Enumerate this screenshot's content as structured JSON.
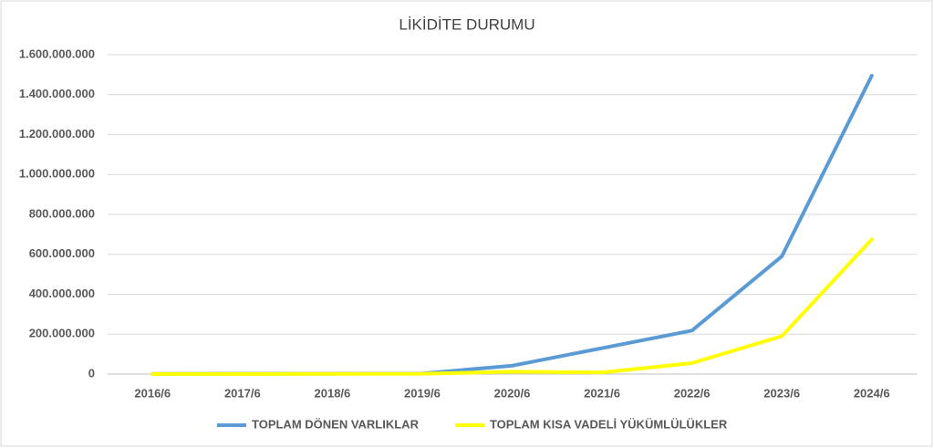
{
  "chart_data": {
    "type": "line",
    "title": "LİKİDİTE DURUMU",
    "categories": [
      "2016/6",
      "2017/6",
      "2018/6",
      "2019/6",
      "2020/6",
      "2021/6",
      "2022/6",
      "2023/6",
      "2024/6"
    ],
    "series": [
      {
        "name": "TOPLAM DÖNEN VARLIKLAR",
        "color": "#5b9bd5",
        "values": [
          1000000,
          1500000,
          2000000,
          3000000,
          42000000,
          130000000,
          218000000,
          590000000,
          1495000000
        ]
      },
      {
        "name": "TOPLAM KISA VADELİ YÜKÜMLÜLÜKLER",
        "color": "#ffff00",
        "values": [
          500000,
          700000,
          1000000,
          1500000,
          12000000,
          8000000,
          55000000,
          190000000,
          675000000
        ]
      }
    ],
    "ylim": [
      0,
      1600000000
    ],
    "yticks": [
      0,
      {
        "value": 200000000,
        "label": "200.000.000"
      },
      {
        "value": 400000000,
        "label": "400.000.000"
      },
      {
        "value": 600000000,
        "label": "600.000.000"
      },
      {
        "value": 800000000,
        "label": "800.000.000"
      },
      {
        "value": 1000000000,
        "label": "1.000.000.000"
      },
      {
        "value": 1200000000,
        "label": "1.200.000.000"
      },
      {
        "value": 1400000000,
        "label": "1.400.000.000"
      },
      {
        "value": 1600000000,
        "label": "1.600.000.000"
      }
    ],
    "grid": true,
    "legend": "bottom"
  }
}
